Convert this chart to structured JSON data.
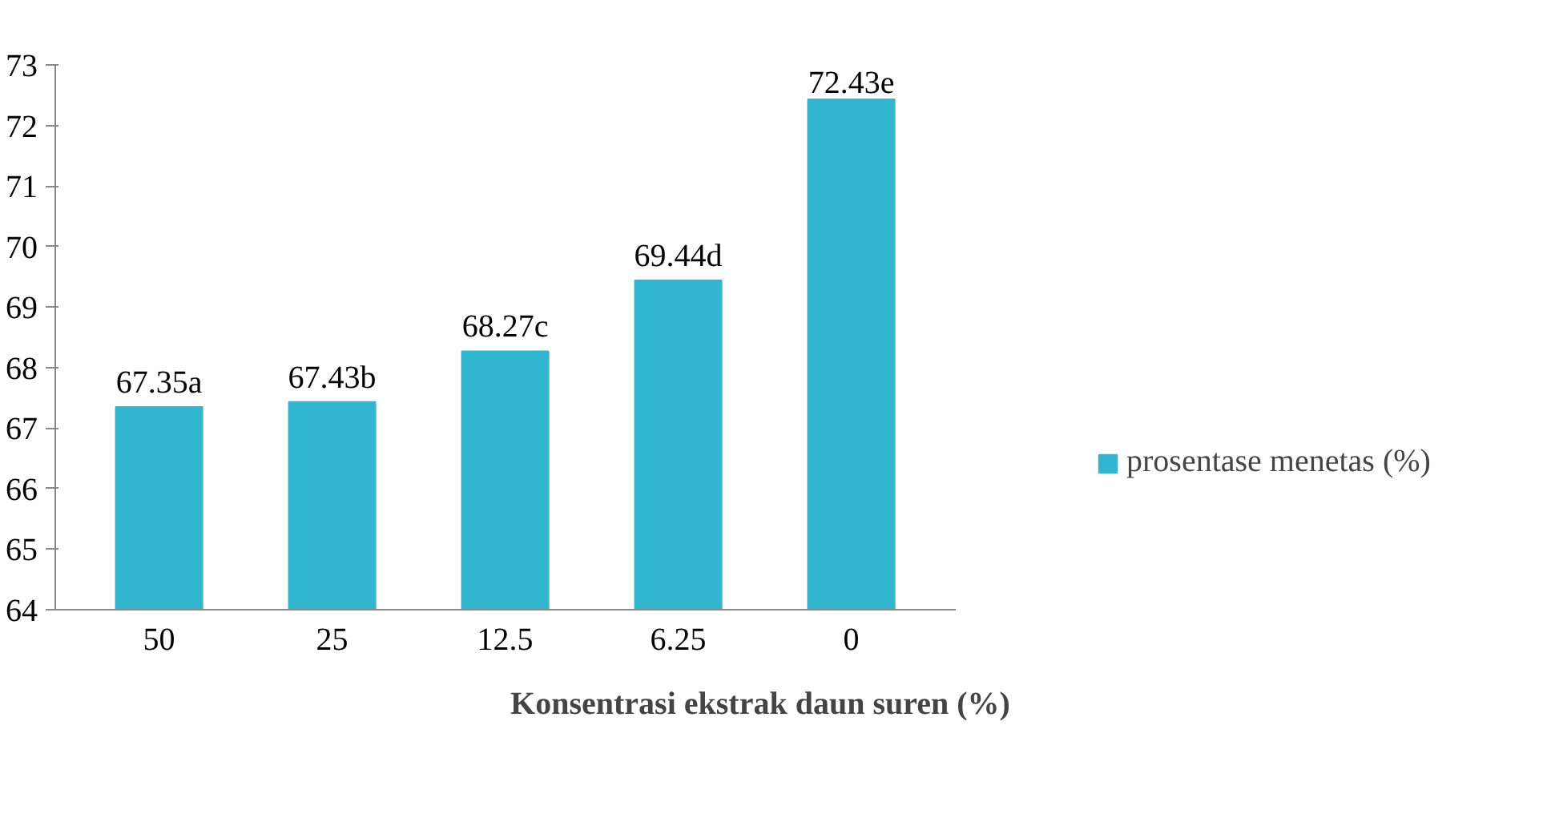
{
  "chart_data": {
    "type": "bar",
    "xlabel": "Konsentrasi ekstrak daun suren (%)",
    "categories": [
      "50",
      "25",
      "12.5",
      "6.25",
      "0"
    ],
    "series": [
      {
        "name": "prosentase menetas (%)",
        "color": "#31b6cf",
        "values": [
          67.35,
          67.43,
          68.27,
          69.44,
          72.43
        ],
        "value_labels": [
          "67.35a",
          "67.43b",
          "68.27c",
          "69.44d",
          "72.43e"
        ]
      }
    ],
    "ylim": [
      64,
      73
    ],
    "yticks": [
      64,
      65,
      66,
      67,
      68,
      69,
      70,
      71,
      72,
      73
    ],
    "grid": false,
    "legend": "right"
  }
}
